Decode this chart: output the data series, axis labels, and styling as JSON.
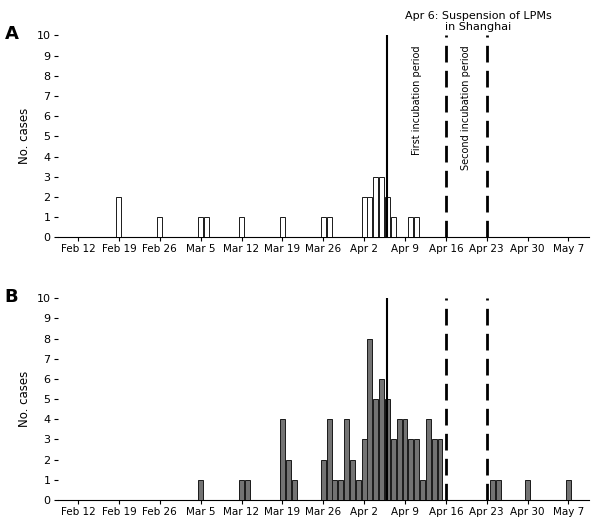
{
  "panel_A_label": "A",
  "panel_B_label": "B",
  "ylabel": "No. cases",
  "ylim_max": 10,
  "yticks": [
    0,
    1,
    2,
    3,
    4,
    5,
    6,
    7,
    8,
    9,
    10
  ],
  "xtick_labels": [
    "Feb 12",
    "Feb 19",
    "Feb 26",
    "Mar 5",
    "Mar 12",
    "Mar 19",
    "Mar 26",
    "Apr 2",
    "Apr 9",
    "Apr 16",
    "Apr 23",
    "Apr 30",
    "May 7"
  ],
  "xtick_offsets": [
    0,
    7,
    14,
    21,
    28,
    35,
    42,
    49,
    56,
    63,
    70,
    77,
    84
  ],
  "solid_line_day": 53,
  "dashed_line1_day": 63,
  "dashed_line2_day": 70,
  "xlim_min": -3.5,
  "xlim_max": 87.5,
  "panel_A_days": [
    7,
    14,
    21,
    22,
    28,
    35,
    42,
    43,
    49,
    50,
    51,
    52,
    53,
    54,
    57,
    58
  ],
  "panel_A_counts": [
    2,
    1,
    1,
    1,
    1,
    1,
    1,
    1,
    2,
    2,
    3,
    3,
    2,
    1,
    1,
    1
  ],
  "panel_B_days": [
    21,
    28,
    29,
    35,
    36,
    37,
    42,
    43,
    44,
    45,
    46,
    47,
    48,
    49,
    50,
    51,
    52,
    53,
    54,
    55,
    56,
    57,
    58,
    59,
    60,
    61,
    62,
    71,
    72,
    77,
    84
  ],
  "panel_B_counts": [
    1,
    1,
    1,
    4,
    2,
    1,
    2,
    4,
    1,
    1,
    4,
    2,
    1,
    3,
    8,
    5,
    6,
    5,
    3,
    4,
    4,
    3,
    3,
    1,
    4,
    3,
    3,
    1,
    1,
    1,
    1
  ],
  "bar_color_A": "#ffffff",
  "bar_color_B": "#737373",
  "bar_edgecolor": "#1a1a1a",
  "line_color": "#000000",
  "solid_annotation_line1": "Apr 6: Suspension of LPMs",
  "solid_annotation_line2": "in Shanghai",
  "dash1_annotation": "First incubation period",
  "dash2_annotation": "Second incubation period",
  "fig_width": 6.0,
  "fig_height": 5.28,
  "dpi": 100
}
